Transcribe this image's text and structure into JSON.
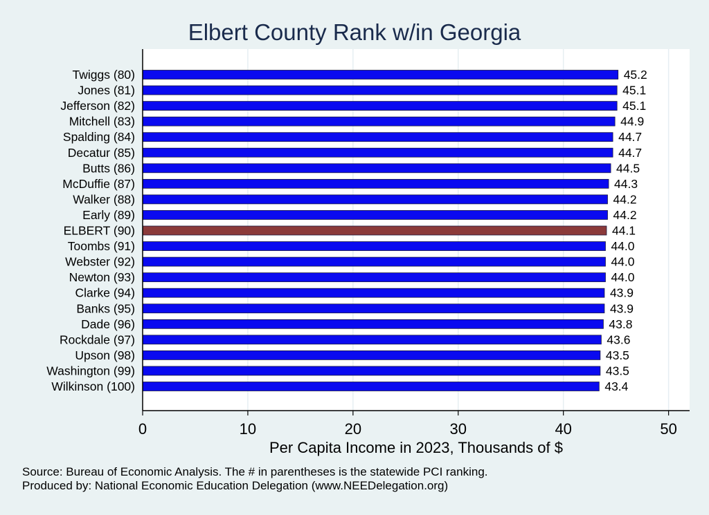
{
  "chart_data": {
    "type": "bar",
    "orientation": "horizontal",
    "title": "Elbert County Rank w/in Georgia",
    "xlabel": "Per Capita Income in 2023, Thousands of $",
    "ylabel": "",
    "xlim": [
      0,
      52
    ],
    "xticks": [
      0,
      10,
      20,
      30,
      40,
      50
    ],
    "grid": "vertical gridlines",
    "colors": {
      "default_bar": "#0a0af0",
      "highlight_bar": "#8b3a3a",
      "title": "#1a2b4c"
    },
    "categories": [
      "Twiggs (80)",
      "Jones (81)",
      "Jefferson (82)",
      "Mitchell (83)",
      "Spalding (84)",
      "Decatur (85)",
      "Butts (86)",
      "McDuffie (87)",
      "Walker (88)",
      "Early (89)",
      "ELBERT (90)",
      "Toombs (91)",
      "Webster (92)",
      "Newton (93)",
      "Clarke (94)",
      "Banks (95)",
      "Dade (96)",
      "Rockdale (97)",
      "Upson (98)",
      "Washington (99)",
      "Wilkinson (100)"
    ],
    "values": [
      45.2,
      45.1,
      45.1,
      44.9,
      44.7,
      44.7,
      44.5,
      44.3,
      44.2,
      44.2,
      44.1,
      44.0,
      44.0,
      44.0,
      43.9,
      43.9,
      43.8,
      43.6,
      43.5,
      43.5,
      43.4
    ],
    "value_labels": [
      "45.2",
      "45.1",
      "45.1",
      "44.9",
      "44.7",
      "44.7",
      "44.5",
      "44.3",
      "44.2",
      "44.2",
      "44.1",
      "44.0",
      "44.0",
      "44.0",
      "43.9",
      "43.9",
      "43.8",
      "43.6",
      "43.5",
      "43.5",
      "43.4"
    ],
    "highlight": "ELBERT (90)"
  },
  "notes": {
    "source": "Source: Bureau of Economic Analysis. The # in parentheses is the statewide PCI ranking.",
    "producer": "Produced by: National Economic Education Delegation (www.NEEDelegation.org)"
  }
}
